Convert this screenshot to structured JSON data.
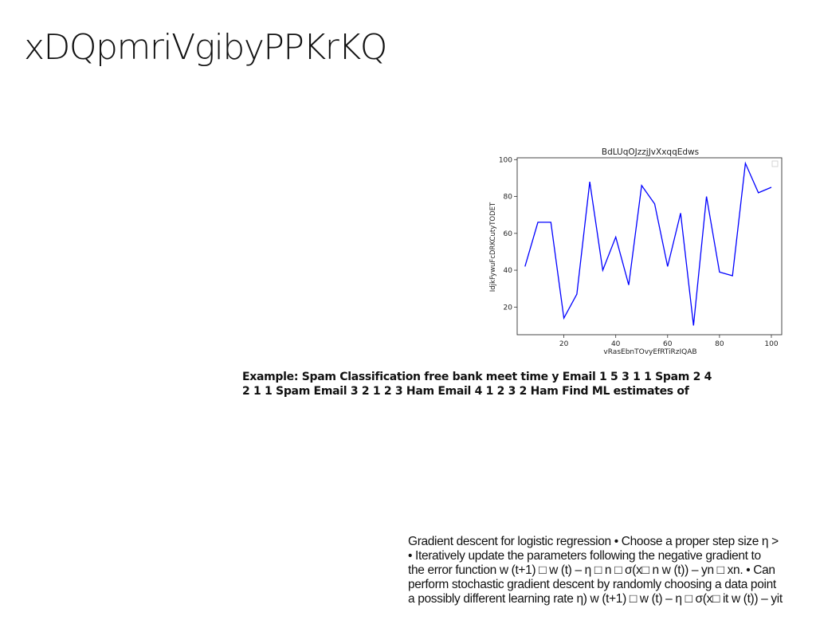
{
  "slide": {
    "title": "xDQpmriVgibyPPKrKQ",
    "example_text": "Example: Spam Classification free bank meet time y Email 1 5 3 1 1 Spam 2 4 2 1 1 Spam Email 3 2 1 2 3 Ham Email 4 1 2 3 2 Ham Find ML estimates of",
    "gradient_lines": [
      "Gradient descent for logistic regression • Choose a proper step size η >",
      "• Iteratively update the parameters following the negative gradient to",
      "the error function w (t+1) □ w (t) – η □ n □ σ(x□ n w (t)) – yn □ xn. • Can",
      "perform stochastic gradient descent by randomly choosing a data point",
      "a possibly different learning rate η) w (t+1) □ w (t) – η □ σ(x□ it w (t)) – yit"
    ]
  },
  "chart_data": {
    "type": "line",
    "title": "BdLUqOJzzjJvXxqqEdws",
    "xlabel": "vRasEbnTOvyEfRTiRzIQAB",
    "ylabel": "IdjkFywuFcDRKCutyTODET",
    "xlim": [
      2,
      104
    ],
    "ylim": [
      5,
      101
    ],
    "x_ticks": [
      20,
      40,
      60,
      80,
      100
    ],
    "y_ticks": [
      20,
      40,
      60,
      80,
      100
    ],
    "grid": false,
    "legend": "top-right",
    "line_color": "#0000ff",
    "series": [
      {
        "x": [
          5,
          10,
          15,
          20,
          25,
          30,
          35,
          40,
          45,
          50,
          55,
          60,
          65,
          70,
          75,
          80,
          85,
          90,
          95,
          100
        ],
        "values": [
          42,
          66,
          66,
          14,
          27,
          88,
          40,
          58,
          32,
          86,
          76,
          42,
          71,
          10,
          80,
          39,
          37,
          98,
          82,
          85
        ]
      }
    ]
  }
}
